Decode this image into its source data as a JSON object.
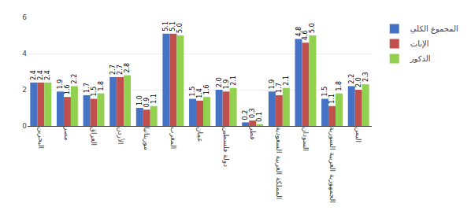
{
  "chart_data": {
    "type": "bar",
    "categories": [
      "البحرين",
      "مصر",
      "العراق",
      "الأردن",
      "موريتانيا",
      "المغرب",
      "عمان",
      "دولة فلسطين",
      "قطر",
      "المملكة العربية السعودية",
      "السودان",
      "الجمهورية العربية السورية",
      "اليمن"
    ],
    "series": [
      {
        "name": "المجموع الكلي",
        "color": "#4472c4",
        "values": [
          2.4,
          1.9,
          1.7,
          2.7,
          1.0,
          5.1,
          1.5,
          2.0,
          0.2,
          1.9,
          4.8,
          1.5,
          2.2
        ],
        "value_labels": [
          "2.4",
          "1.9",
          "1.7",
          "2.7",
          "1.0",
          "5.1",
          "1.5",
          "2.0",
          "0.2",
          "1.9",
          "4.8",
          "1.5",
          "2.2"
        ]
      },
      {
        "name": "الإناث",
        "color": "#c0504d",
        "values": [
          2.4,
          1.6,
          1.5,
          2.7,
          0.9,
          5.1,
          1.4,
          1.9,
          0.3,
          1.7,
          4.6,
          1.1,
          2.0
        ],
        "value_labels": [
          "2.4",
          "1.6",
          "1.5",
          "2.7",
          "0.9",
          "5.1",
          "1.4",
          "1.9",
          "0.3",
          "1.7",
          "4.6",
          "1.1",
          "2.0"
        ]
      },
      {
        "name": "الذكور",
        "color": "#92d050",
        "values": [
          2.4,
          2.2,
          1.8,
          2.8,
          1.1,
          5.0,
          1.6,
          2.1,
          0.1,
          2.1,
          5.0,
          1.8,
          2.3
        ],
        "value_labels": [
          "2.4",
          "2.2",
          "1.8",
          "2.8",
          "1.1",
          "5.0",
          "1.6",
          "2.1",
          "0.1",
          "2.1",
          "5.0",
          "1.8",
          "2.3"
        ]
      }
    ],
    "ylim": [
      0,
      6
    ],
    "yticks": [
      0,
      2,
      4,
      6
    ],
    "grid": true,
    "data_labels": true,
    "legend": "right"
  }
}
